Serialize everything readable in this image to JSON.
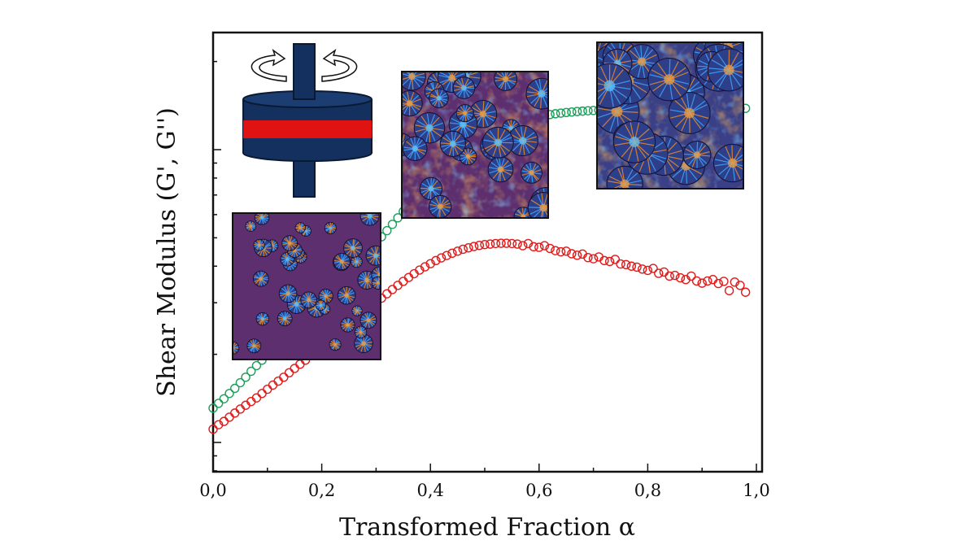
{
  "chart_data": {
    "type": "scatter",
    "xlabel": "Transformed Fraction α",
    "ylabel_parts": [
      {
        "text": "Shear Modulus (",
        "color": "#111111"
      },
      {
        "text": "G'",
        "color": "#1e9e5a"
      },
      {
        "text": ", ",
        "color": "#111111"
      },
      {
        "text": "G''",
        "color": "#e01b1b"
      },
      {
        "text": ")",
        "color": "#111111"
      }
    ],
    "xlim": [
      0.0,
      1.0
    ],
    "x_ticks": [
      "0,0",
      "0,2",
      "0,4",
      "0,6",
      "0,8",
      "1,0"
    ],
    "y_scale": "log",
    "y_tick_labels": [],
    "legend": "none",
    "grid": false,
    "series": [
      {
        "name": "G'",
        "color": "#1e9e5a",
        "marker": "open-circle",
        "x": [
          0.0,
          0.01,
          0.02,
          0.03,
          0.04,
          0.05,
          0.06,
          0.07,
          0.08,
          0.09,
          0.1,
          0.11,
          0.12,
          0.13,
          0.14,
          0.15,
          0.16,
          0.17,
          0.18,
          0.19,
          0.2,
          0.21,
          0.22,
          0.23,
          0.24,
          0.25,
          0.26,
          0.27,
          0.28,
          0.29,
          0.3,
          0.31,
          0.32,
          0.33,
          0.34,
          0.35,
          0.36,
          0.37,
          0.38,
          0.39,
          0.4,
          0.41,
          0.42,
          0.43,
          0.44,
          0.45,
          0.46,
          0.47,
          0.48,
          0.49,
          0.5,
          0.51,
          0.52,
          0.53,
          0.54,
          0.55,
          0.56,
          0.57,
          0.58,
          0.59,
          0.6,
          0.61,
          0.62,
          0.63,
          0.64,
          0.65,
          0.66,
          0.67,
          0.68,
          0.69,
          0.7,
          0.71,
          0.72,
          0.73,
          0.74,
          0.75,
          0.76,
          0.77,
          0.78,
          0.79,
          0.8,
          0.81,
          0.82,
          0.83,
          0.84,
          0.85,
          0.86,
          0.87,
          0.88,
          0.89,
          0.9,
          0.91,
          0.92,
          0.93,
          0.94,
          0.95,
          0.96,
          0.97,
          0.98
        ],
        "y": [
          0.131,
          0.136,
          0.141,
          0.147,
          0.153,
          0.16,
          0.167,
          0.175,
          0.183,
          0.191,
          0.2,
          0.209,
          0.219,
          0.229,
          0.239,
          0.25,
          0.261,
          0.272,
          0.284,
          0.296,
          0.309,
          0.322,
          0.336,
          0.351,
          0.366,
          0.382,
          0.399,
          0.417,
          0.437,
          0.458,
          0.48,
          0.504,
          0.529,
          0.556,
          0.585,
          0.615,
          0.647,
          0.68,
          0.714,
          0.749,
          0.785,
          0.821,
          0.857,
          0.893,
          0.928,
          0.962,
          0.995,
          1.027,
          1.058,
          1.087,
          1.115,
          1.141,
          1.166,
          1.189,
          1.21,
          1.229,
          1.246,
          1.262,
          1.276,
          1.288,
          1.299,
          1.309,
          1.318,
          1.326,
          1.333,
          1.339,
          1.345,
          1.35,
          1.354,
          1.358,
          1.361,
          1.364,
          1.367,
          1.369,
          1.371,
          1.373,
          1.374,
          1.375,
          1.376,
          1.377,
          1.378,
          1.379,
          1.38,
          1.38,
          1.381,
          1.381,
          1.382,
          1.382,
          1.382,
          1.383,
          1.383,
          1.383,
          1.383,
          1.384,
          1.384,
          1.384,
          1.384,
          1.384,
          1.384
        ]
      },
      {
        "name": "G''",
        "color": "#e01b1b",
        "marker": "open-circle",
        "x": [
          0.0,
          0.01,
          0.02,
          0.03,
          0.04,
          0.05,
          0.06,
          0.07,
          0.08,
          0.09,
          0.1,
          0.11,
          0.12,
          0.13,
          0.14,
          0.15,
          0.16,
          0.17,
          0.18,
          0.19,
          0.2,
          0.21,
          0.22,
          0.23,
          0.24,
          0.25,
          0.26,
          0.27,
          0.28,
          0.29,
          0.3,
          0.31,
          0.32,
          0.33,
          0.34,
          0.35,
          0.36,
          0.37,
          0.38,
          0.39,
          0.4,
          0.41,
          0.42,
          0.43,
          0.44,
          0.45,
          0.46,
          0.47,
          0.48,
          0.49,
          0.5,
          0.51,
          0.52,
          0.53,
          0.54,
          0.55,
          0.56,
          0.57,
          0.58,
          0.59,
          0.6,
          0.61,
          0.62,
          0.63,
          0.64,
          0.65,
          0.66,
          0.67,
          0.68,
          0.69,
          0.7,
          0.71,
          0.72,
          0.73,
          0.74,
          0.75,
          0.76,
          0.77,
          0.78,
          0.79,
          0.8,
          0.81,
          0.82,
          0.83,
          0.84,
          0.85,
          0.86,
          0.87,
          0.88,
          0.89,
          0.9,
          0.91,
          0.92,
          0.93,
          0.94,
          0.95,
          0.96,
          0.97,
          0.98
        ],
        "y": [
          0.111,
          0.115,
          0.118,
          0.122,
          0.126,
          0.13,
          0.134,
          0.138,
          0.142,
          0.147,
          0.152,
          0.157,
          0.162,
          0.167,
          0.173,
          0.179,
          0.185,
          0.191,
          0.198,
          0.205,
          0.212,
          0.219,
          0.227,
          0.235,
          0.243,
          0.252,
          0.261,
          0.27,
          0.28,
          0.29,
          0.3,
          0.311,
          0.322,
          0.333,
          0.344,
          0.355,
          0.366,
          0.377,
          0.388,
          0.398,
          0.408,
          0.418,
          0.427,
          0.435,
          0.443,
          0.45,
          0.457,
          0.462,
          0.467,
          0.471,
          0.474,
          0.476,
          0.478,
          0.479,
          0.479,
          0.478,
          0.476,
          0.47,
          0.478,
          0.466,
          0.464,
          0.47,
          0.46,
          0.452,
          0.448,
          0.45,
          0.441,
          0.436,
          0.44,
          0.428,
          0.424,
          0.43,
          0.418,
          0.415,
          0.422,
          0.407,
          0.405,
          0.4,
          0.397,
          0.391,
          0.387,
          0.393,
          0.378,
          0.382,
          0.37,
          0.372,
          0.365,
          0.36,
          0.37,
          0.356,
          0.35,
          0.356,
          0.36,
          0.349,
          0.355,
          0.33,
          0.353,
          0.344,
          0.326
        ]
      }
    ]
  },
  "insets": {
    "rheometer": "parallel-plate-rheometer-icon",
    "micrographs": [
      "crystallization-micrograph-low",
      "crystallization-micrograph-mid",
      "crystallization-micrograph-high"
    ]
  }
}
